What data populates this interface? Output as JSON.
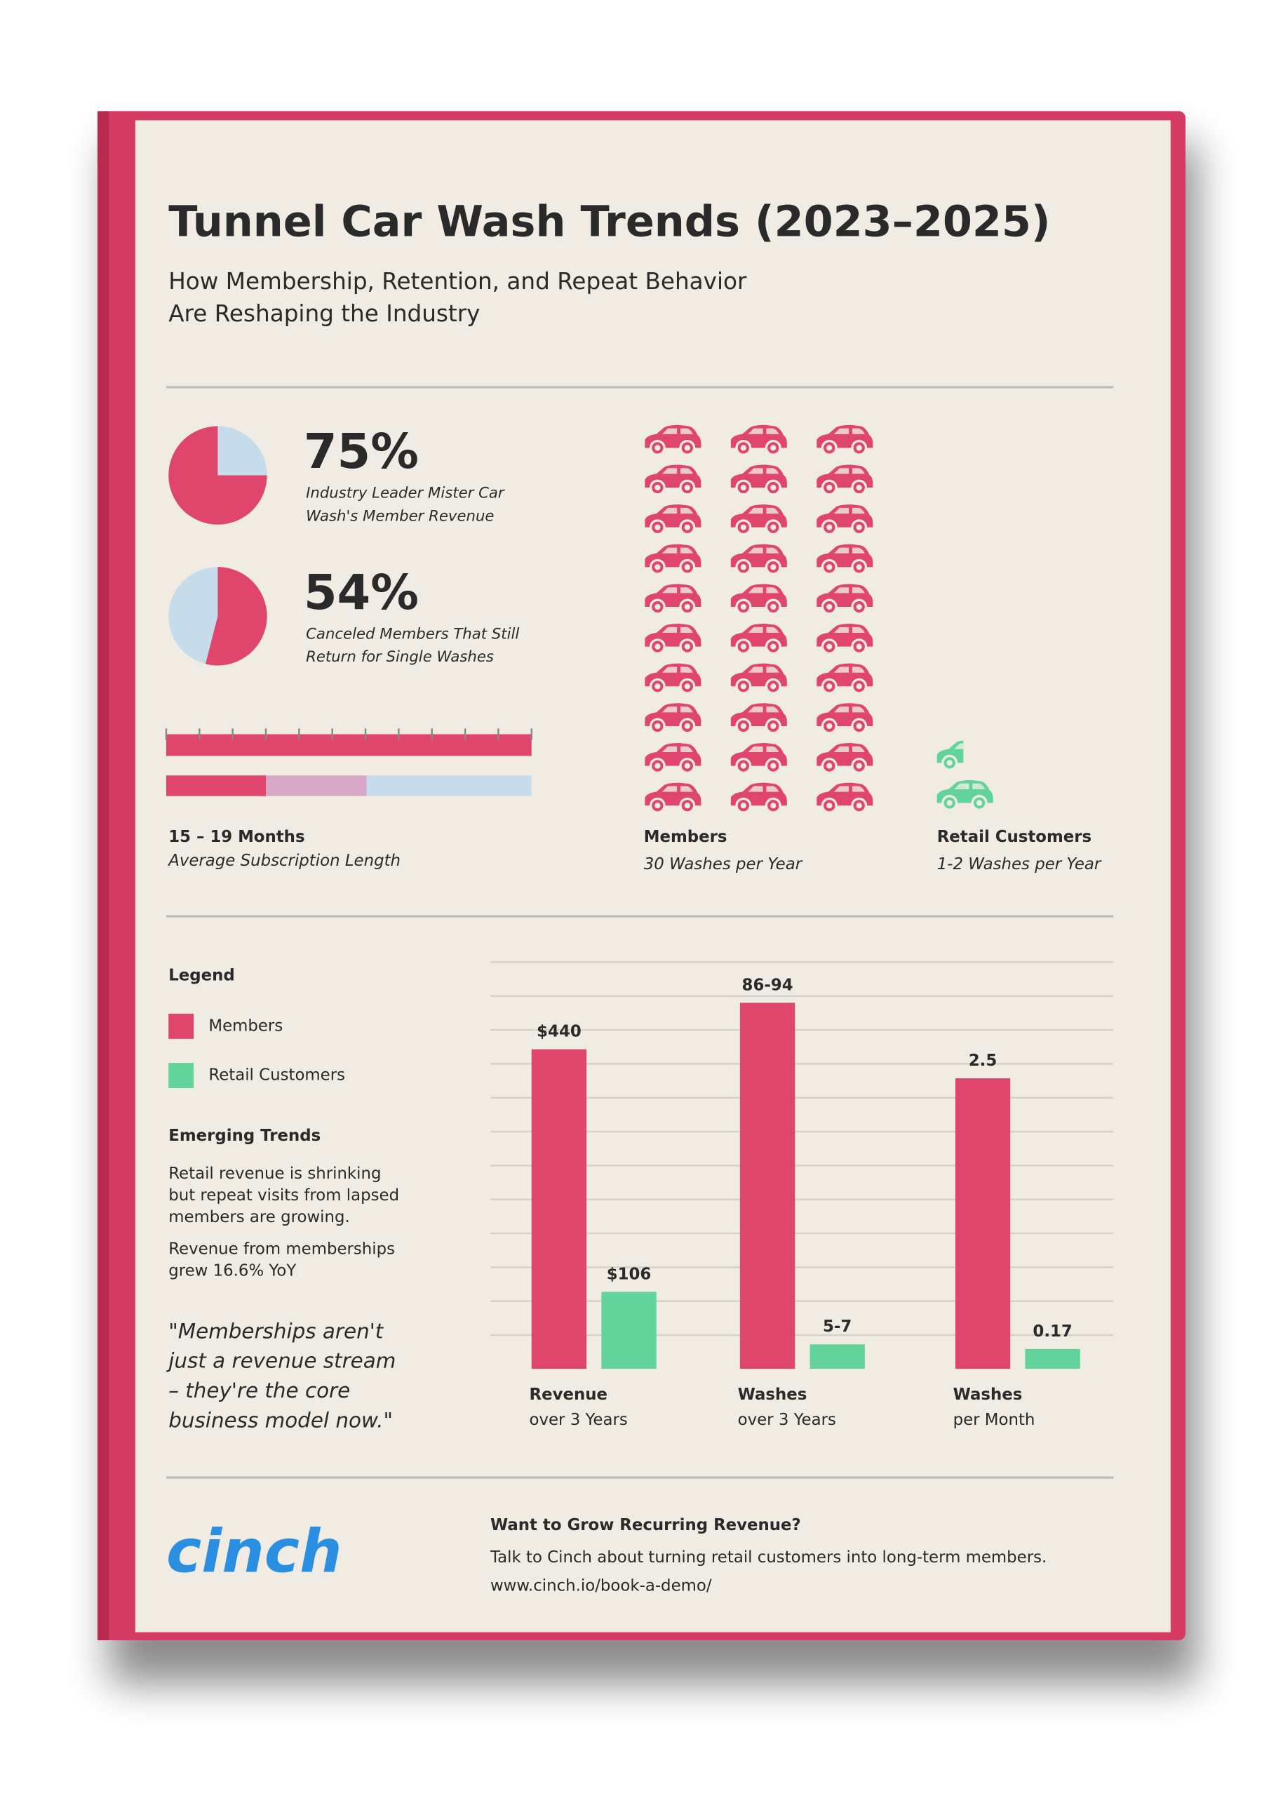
{
  "header": {
    "title": "Tunnel Car Wash Trends (2023–2025)",
    "subtitle_lines": [
      "How Membership, Retention, and Repeat Behavior",
      "Are Reshaping the Industry"
    ]
  },
  "stats": [
    {
      "value": 75,
      "label": "75%",
      "caption_lines": [
        "Industry Leader Mister Car",
        "Wash's Member Revenue"
      ]
    },
    {
      "value": 54,
      "label": "54%",
      "caption_lines": [
        "Canceled Members That Still",
        "Return for Single Washes"
      ]
    }
  ],
  "subscription": {
    "title": "15 – 19 Months",
    "caption": "Average Subscription Length"
  },
  "pictogram": {
    "members": {
      "label": "Members",
      "caption": "30 Washes per Year",
      "count": 30,
      "color": "#e0456b"
    },
    "retail": {
      "label": "Retail Customers",
      "caption": "1-2 Washes per Year",
      "count": 1.5,
      "color": "#62d49b"
    }
  },
  "sidebar": {
    "legend_title": "Legend",
    "trends_title": "Emerging Trends",
    "trends": [
      [
        "Retail revenue is shrinking",
        "but repeat visits from lapsed",
        "members are growing."
      ],
      [
        "Revenue from memberships",
        "grew 16.6% YoY"
      ]
    ],
    "quote_lines": [
      "\"Memberships aren't",
      "just a revenue stream",
      "– they're the core",
      "business model now.\""
    ]
  },
  "chart_data": [
    {
      "type": "bar",
      "title": "Revenue",
      "subtitle": "over 3 Years",
      "ylim": [
        0,
        560
      ],
      "series": [
        {
          "name": "Members",
          "color": "#e0456b",
          "values": [
            440
          ],
          "value_labels": [
            "$440"
          ]
        },
        {
          "name": "Retail Customers",
          "color": "#62d49b",
          "values": [
            106
          ],
          "value_labels": [
            "$106"
          ]
        }
      ]
    },
    {
      "type": "bar",
      "title": "Washes",
      "subtitle": "over 3 Years",
      "ylim": [
        0,
        100
      ],
      "series": [
        {
          "color": "#e0456b",
          "values": [
            90
          ],
          "value_labels": [
            "86-94"
          ]
        },
        {
          "color": "#62d49b",
          "values": [
            6
          ],
          "value_labels": [
            "5-7"
          ]
        }
      ]
    },
    {
      "type": "bar",
      "title": "Washes",
      "subtitle": "per Month",
      "ylim": [
        0,
        3.5
      ],
      "series": [
        {
          "color": "#e0456b",
          "values": [
            2.5
          ]
        },
        {
          "color": "#62d49b",
          "values": [
            0.17
          ]
        }
      ]
    }
  ],
  "footer": {
    "logo": "cinch",
    "heading": "Want to Grow Recurring Revenue?",
    "text": "Talk to Cinch about turning retail customers into long-term members.",
    "url": "www.cinch.io/book-a-demo/"
  }
}
